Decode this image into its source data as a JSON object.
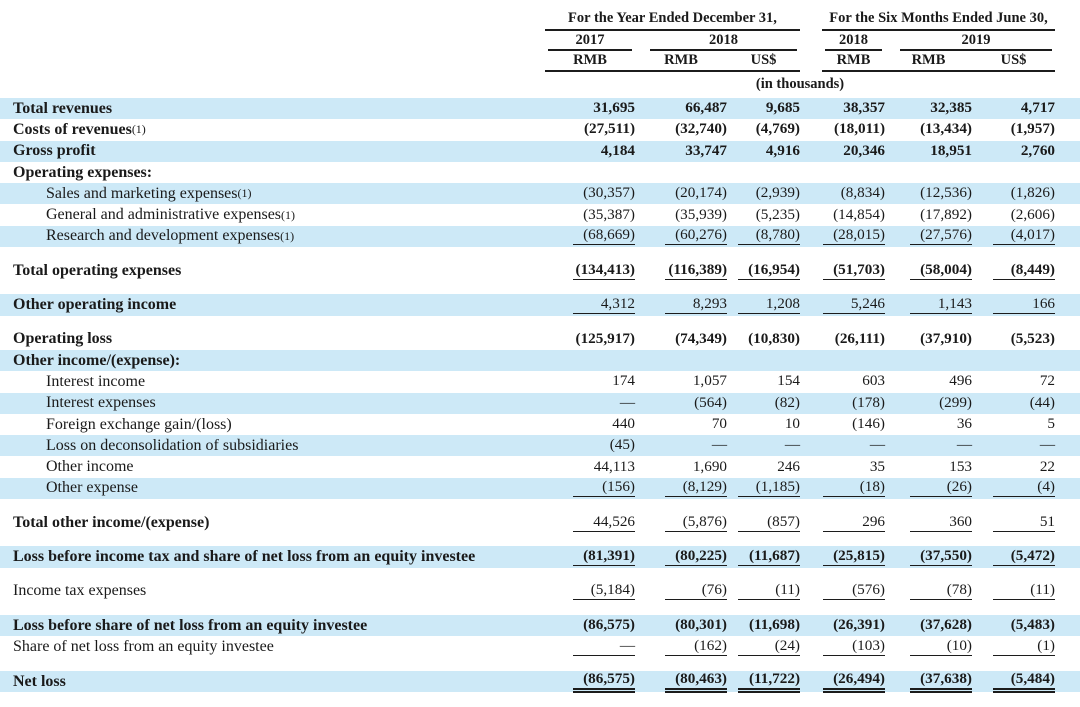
{
  "table": {
    "header": {
      "group1": {
        "title": "For the Year Ended December 31,",
        "years": [
          "2017",
          "2018"
        ],
        "units": [
          "RMB",
          "RMB",
          "US$"
        ]
      },
      "group2": {
        "title": "For the Six Months Ended June 30,",
        "years": [
          "2018",
          "2019"
        ],
        "units": [
          "RMB",
          "RMB",
          "US$"
        ]
      },
      "units_note": "(in thousands)"
    },
    "rows": [
      {
        "label": "Total revenues",
        "bold": true,
        "val_bold": true,
        "bg": "blue",
        "values": [
          "31,695",
          "66,487",
          "9,685",
          "38,357",
          "32,385",
          "4,717"
        ]
      },
      {
        "label": "Costs of revenues",
        "note": "(1)",
        "bold": true,
        "val_bold": true,
        "bg": "white",
        "values": [
          "(27,511)",
          "(32,740)",
          "(4,769)",
          "(18,011)",
          "(13,434)",
          "(1,957)"
        ]
      },
      {
        "label": "Gross profit",
        "bold": true,
        "val_bold": true,
        "bg": "blue",
        "values": [
          "4,184",
          "33,747",
          "4,916",
          "20,346",
          "18,951",
          "2,760"
        ]
      },
      {
        "label": "Operating expenses:",
        "bold": true,
        "bg": "white",
        "values": [
          "",
          "",
          "",
          "",
          "",
          ""
        ]
      },
      {
        "label": "Sales and marketing expenses",
        "note": "(1)",
        "indent": true,
        "bg": "blue",
        "values": [
          "(30,357)",
          "(20,174)",
          "(2,939)",
          "(8,834)",
          "(12,536)",
          "(1,826)"
        ]
      },
      {
        "label": "General and administrative expenses",
        "note": "(1)",
        "indent": true,
        "bg": "white",
        "values": [
          "(35,387)",
          "(35,939)",
          "(5,235)",
          "(14,854)",
          "(17,892)",
          "(2,606)"
        ]
      },
      {
        "label": "Research and development expenses",
        "note": "(1)",
        "indent": true,
        "bg": "blue",
        "values": [
          "(68,669)",
          "(60,276)",
          "(8,780)",
          "(28,015)",
          "(27,576)",
          "(4,017)"
        ],
        "underline": "single"
      },
      {
        "label": "Total operating expenses",
        "bold": true,
        "val_bold": true,
        "bg": "white",
        "gap": true,
        "values": [
          "(134,413)",
          "(116,389)",
          "(16,954)",
          "(51,703)",
          "(58,004)",
          "(8,449)"
        ],
        "underline": "single"
      },
      {
        "label": "Other operating income",
        "bold": true,
        "bg": "blue",
        "gap": true,
        "values": [
          "4,312",
          "8,293",
          "1,208",
          "5,246",
          "1,143",
          "166"
        ],
        "underline": "single"
      },
      {
        "label": "Operating loss",
        "bold": true,
        "val_bold": true,
        "bg": "white",
        "gap": true,
        "values": [
          "(125,917)",
          "(74,349)",
          "(10,830)",
          "(26,111)",
          "(37,910)",
          "(5,523)"
        ]
      },
      {
        "label": "Other income/(expense):",
        "bold": true,
        "bg": "blue",
        "values": [
          "",
          "",
          "",
          "",
          "",
          ""
        ]
      },
      {
        "label": "Interest income",
        "indent": true,
        "bg": "white",
        "values": [
          "174",
          "1,057",
          "154",
          "603",
          "496",
          "72"
        ]
      },
      {
        "label": "Interest expenses",
        "indent": true,
        "bg": "blue",
        "values": [
          "—",
          "(564)",
          "(82)",
          "(178)",
          "(299)",
          "(44)"
        ]
      },
      {
        "label": "Foreign exchange gain/(loss)",
        "indent": true,
        "bg": "white",
        "values": [
          "440",
          "70",
          "10",
          "(146)",
          "36",
          "5"
        ]
      },
      {
        "label": "Loss on deconsolidation of subsidiaries",
        "indent": true,
        "bg": "blue",
        "values": [
          "(45)",
          "—",
          "—",
          "—",
          "—",
          "—"
        ]
      },
      {
        "label": "Other income",
        "indent": true,
        "bg": "white",
        "values": [
          "44,113",
          "1,690",
          "246",
          "35",
          "153",
          "22"
        ]
      },
      {
        "label": "Other expense",
        "indent": true,
        "bg": "blue",
        "values": [
          "(156)",
          "(8,129)",
          "(1,185)",
          "(18)",
          "(26)",
          "(4)"
        ],
        "underline": "single"
      },
      {
        "label": "Total other income/(expense)",
        "bold": true,
        "bg": "white",
        "gap": true,
        "values": [
          "44,526",
          "(5,876)",
          "(857)",
          "296",
          "360",
          "51"
        ],
        "underline": "single"
      },
      {
        "label": "Loss before income tax and share of net loss from an equity investee",
        "bold": true,
        "val_bold": true,
        "bg": "blue",
        "gap": true,
        "values": [
          "(81,391)",
          "(80,225)",
          "(11,687)",
          "(25,815)",
          "(37,550)",
          "(5,472)"
        ],
        "underline": "single"
      },
      {
        "label": "Income tax expenses",
        "bg": "white",
        "gap": true,
        "values": [
          "(5,184)",
          "(76)",
          "(11)",
          "(576)",
          "(78)",
          "(11)"
        ],
        "underline": "single"
      },
      {
        "label": "Loss before share of net loss from an equity investee",
        "bold": true,
        "val_bold": true,
        "bg": "blue",
        "gap": true,
        "values": [
          "(86,575)",
          "(80,301)",
          "(11,698)",
          "(26,391)",
          "(37,628)",
          "(5,483)"
        ]
      },
      {
        "label": "Share of net loss from an equity investee",
        "bg": "white",
        "values": [
          "—",
          "(162)",
          "(24)",
          "(103)",
          "(10)",
          "(1)"
        ],
        "underline": "single"
      },
      {
        "label": "Net loss",
        "bold": true,
        "val_bold": true,
        "bg": "blue",
        "gap": true,
        "values": [
          "(86,575)",
          "(80,463)",
          "(11,722)",
          "(26,494)",
          "(37,638)",
          "(5,484)"
        ],
        "underline": "double"
      }
    ],
    "colors": {
      "row_highlight": "#cde9f7",
      "text": "#1a1a1a",
      "rule": "#1c1c1c"
    }
  }
}
